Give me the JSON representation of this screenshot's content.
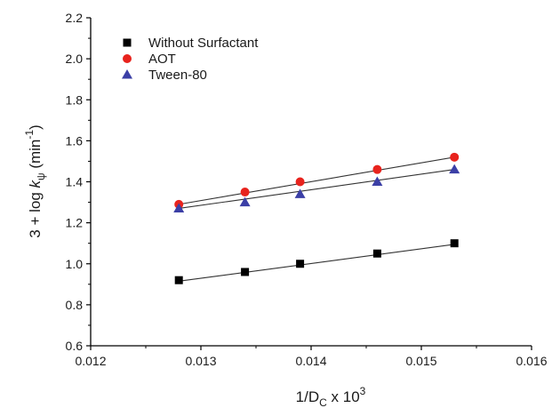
{
  "chart_data": {
    "type": "scatter",
    "xlabel": {
      "base": "1/D",
      "subscript": "C",
      "middle": " x 10",
      "superscript": "3"
    },
    "ylabel": {
      "prefix": "3 + log ",
      "k": "k",
      "subscript": "ψ",
      "middle": " (min",
      "superscript": "-1",
      "suffix": ")"
    },
    "xlim": [
      0.012,
      0.016
    ],
    "ylim": [
      0.6,
      2.2
    ],
    "x_ticks": [
      0.012,
      0.013,
      0.014,
      0.015,
      0.016
    ],
    "x_tick_labels": [
      "0.012",
      "0.013",
      "0.014",
      "0.015",
      "0.016"
    ],
    "y_ticks": [
      0.6,
      0.8,
      1.0,
      1.2,
      1.4,
      1.6,
      1.8,
      2.0,
      2.2
    ],
    "y_tick_labels": [
      "0.6",
      "0.8",
      "1.0",
      "1.2",
      "1.4",
      "1.6",
      "1.8",
      "2.0",
      "2.2"
    ],
    "legend_position": "top-left",
    "grid": false,
    "series": [
      {
        "name": "Without Surfactant",
        "marker": "square",
        "color": "#000000",
        "x": [
          0.0128,
          0.0134,
          0.0139,
          0.0146,
          0.0153
        ],
        "y": [
          0.92,
          0.96,
          1.0,
          1.05,
          1.1
        ],
        "fit": [
          [
            0.0128,
            0.915
          ],
          [
            0.0153,
            1.095
          ]
        ]
      },
      {
        "name": "AOT",
        "marker": "circle",
        "color": "#e8231d",
        "x": [
          0.0128,
          0.0134,
          0.0139,
          0.0146,
          0.0153
        ],
        "y": [
          1.29,
          1.35,
          1.4,
          1.46,
          1.52
        ],
        "fit": [
          [
            0.0128,
            1.29
          ],
          [
            0.0153,
            1.52
          ]
        ]
      },
      {
        "name": "Tween-80",
        "marker": "triangle",
        "color": "#3b3fa6",
        "x": [
          0.0128,
          0.0134,
          0.0139,
          0.0146,
          0.0153
        ],
        "y": [
          1.27,
          1.3,
          1.34,
          1.4,
          1.46
        ],
        "fit": [
          [
            0.0128,
            1.27
          ],
          [
            0.0153,
            1.46
          ]
        ]
      }
    ]
  }
}
